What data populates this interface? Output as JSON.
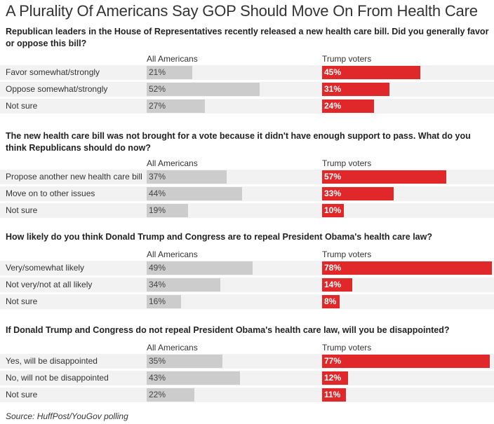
{
  "title": "A Plurality Of Americans Say GOP Should Move On From Health Care",
  "source": "Source: HuffPost/YouGov polling",
  "colors": {
    "all_americans": "#cccccc",
    "trump_voters": "#e0282a",
    "row_background": "#f2f2f2"
  },
  "chart_data": [
    {
      "type": "bar",
      "title": "Republican leaders in the House of Representatives recently released a new health care bill. Did you generally favor or oppose this bill?",
      "categories": [
        "Favor somewhat/strongly",
        "Oppose somewhat/strongly",
        "Not sure"
      ],
      "series": [
        {
          "name": "All Americans",
          "values": [
            21,
            52,
            27
          ],
          "labels": [
            "21%",
            "52%",
            "27%"
          ]
        },
        {
          "name": "Trump voters",
          "values": [
            45,
            31,
            24
          ],
          "labels": [
            "45%",
            "31%",
            "24%"
          ]
        }
      ],
      "xlim": [
        0,
        78
      ]
    },
    {
      "type": "bar",
      "title": "The new health care bill was not brought for a vote because it didn't have enough support to pass. What do you think Republicans should do now?",
      "categories": [
        "Propose another new health care bill",
        "Move on to other issues",
        "Not sure"
      ],
      "series": [
        {
          "name": "All Americans",
          "values": [
            37,
            44,
            19
          ],
          "labels": [
            "37%",
            "44%",
            "19%"
          ]
        },
        {
          "name": "Trump voters",
          "values": [
            57,
            33,
            10
          ],
          "labels": [
            "57%",
            "33%",
            "10%"
          ]
        }
      ],
      "xlim": [
        0,
        78
      ]
    },
    {
      "type": "bar",
      "title": "How likely do you think Donald Trump and Congress are to repeal President Obama's health care law?",
      "categories": [
        "Very/somewhat likely",
        "Not very/not at all likely",
        "Not sure"
      ],
      "series": [
        {
          "name": "All Americans",
          "values": [
            49,
            34,
            16
          ],
          "labels": [
            "49%",
            "34%",
            "16%"
          ]
        },
        {
          "name": "Trump voters",
          "values": [
            78,
            14,
            8
          ],
          "labels": [
            "78%",
            "14%",
            "8%"
          ]
        }
      ],
      "xlim": [
        0,
        78
      ]
    },
    {
      "type": "bar",
      "title": "If Donald Trump and Congress do not repeal President Obama's health care law, will you be disappointed?",
      "categories": [
        "Yes, will be disappointed",
        "No, will not be disappointed",
        "Not sure"
      ],
      "series": [
        {
          "name": "All Americans",
          "values": [
            35,
            43,
            22
          ],
          "labels": [
            "35%",
            "43%",
            "22%"
          ]
        },
        {
          "name": "Trump voters",
          "values": [
            77,
            12,
            11
          ],
          "labels": [
            "77%",
            "12%",
            "11%"
          ]
        }
      ],
      "xlim": [
        0,
        78
      ]
    }
  ]
}
